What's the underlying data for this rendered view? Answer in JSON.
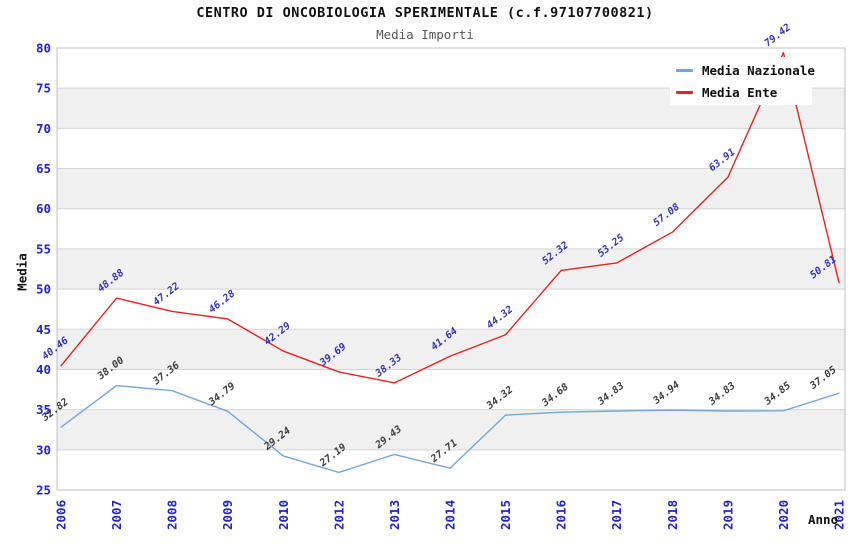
{
  "chart_data": {
    "type": "line",
    "title": "CENTRO DI ONCOBIOLOGIA SPERIMENTALE (c.f.97107700821)",
    "subtitle": "Media Importi",
    "xlabel": "Anno",
    "ylabel": "Media",
    "ylim": [
      25,
      80
    ],
    "ytick_step": 5,
    "grid": true,
    "alternating_bands": true,
    "legend_position": "top-right-inside",
    "categories": [
      "2006",
      "2007",
      "2008",
      "2009",
      "2010",
      "2012",
      "2013",
      "2014",
      "2015",
      "2016",
      "2017",
      "2018",
      "2019",
      "2020",
      "2021"
    ],
    "series": [
      {
        "name": "Media Nazionale",
        "color": "#72a7dc",
        "label_color": "#3c3c3c",
        "values": [
          32.82,
          38.0,
          37.36,
          34.79,
          29.24,
          27.19,
          29.43,
          27.71,
          34.32,
          34.68,
          34.83,
          34.94,
          34.83,
          34.85,
          37.05
        ]
      },
      {
        "name": "Media Ente",
        "color": "#e52222",
        "label_color": "#3434ad",
        "values": [
          40.46,
          48.88,
          47.22,
          46.28,
          42.29,
          39.69,
          38.33,
          41.64,
          44.32,
          52.32,
          53.25,
          57.08,
          63.91,
          79.42,
          50.81
        ]
      }
    ]
  },
  "colors": {
    "tick_label": "#2222cc",
    "gridline": "#d4d4d4",
    "band": "#f0f0f0",
    "plot_border": "#c0c0c0",
    "subtitle": "#555555"
  }
}
